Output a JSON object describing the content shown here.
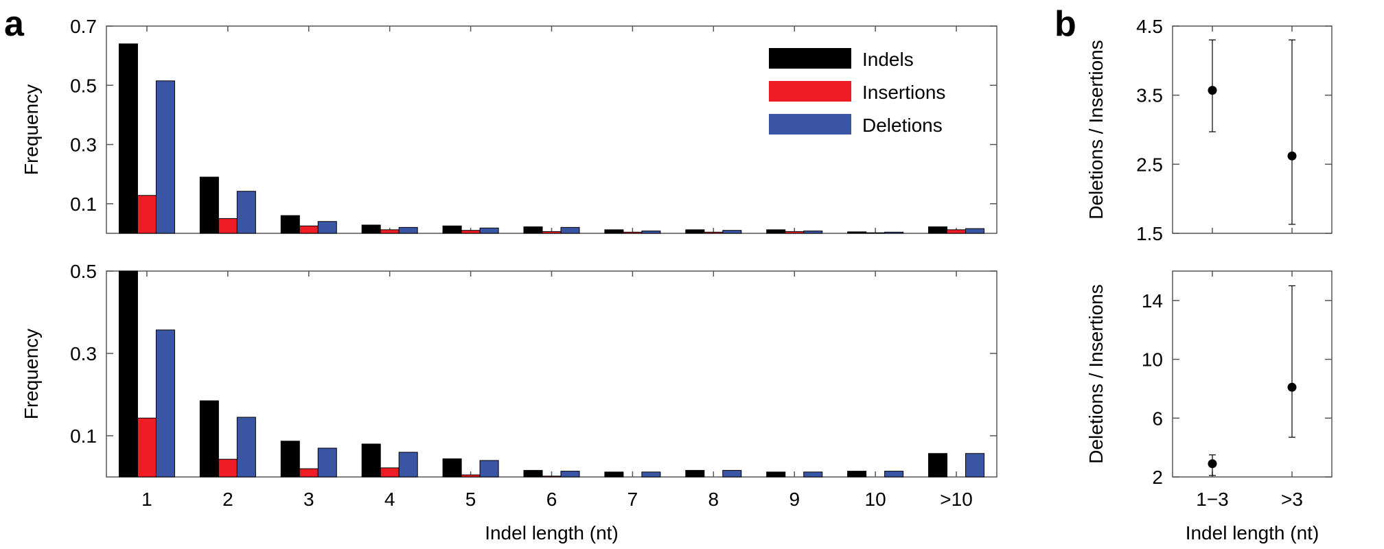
{
  "panel_labels": {
    "a": "a",
    "b": "b"
  },
  "colors": {
    "indels": "#000000",
    "insertions": "#ee1c25",
    "deletions": "#3a55a4"
  },
  "chart_data": [
    {
      "type": "bar",
      "panel": "a",
      "categories": [
        "1",
        "2",
        "3",
        "4",
        "5",
        "6",
        "7",
        "8",
        "9",
        "10",
        ">10"
      ],
      "series": [
        {
          "name": "Indels",
          "values": [
            0.64,
            0.19,
            0.06,
            0.028,
            0.025,
            0.022,
            0.012,
            0.012,
            0.012,
            0.005,
            0.022
          ]
        },
        {
          "name": "Insertions",
          "values": [
            0.128,
            0.05,
            0.025,
            0.012,
            0.01,
            0.006,
            0.004,
            0.004,
            0.006,
            0.002,
            0.012
          ]
        },
        {
          "name": "Deletions",
          "values": [
            0.515,
            0.142,
            0.04,
            0.02,
            0.018,
            0.02,
            0.008,
            0.01,
            0.008,
            0.004,
            0.016
          ]
        }
      ],
      "ylabel": "Frequency",
      "ylim": [
        0,
        0.7
      ],
      "yticks": [
        0.1,
        0.3,
        0.5,
        0.7
      ],
      "legend": [
        "Indels",
        "Insertions",
        "Deletions"
      ],
      "legend_position": "top-right"
    },
    {
      "type": "bar",
      "panel": "a",
      "categories": [
        "1",
        "2",
        "3",
        "4",
        "5",
        "6",
        "7",
        "8",
        "9",
        "10",
        ">10"
      ],
      "series": [
        {
          "name": "Indels",
          "values": [
            0.5,
            0.185,
            0.087,
            0.08,
            0.044,
            0.016,
            0.012,
            0.016,
            0.012,
            0.014,
            0.057
          ]
        },
        {
          "name": "Insertions",
          "values": [
            0.143,
            0.043,
            0.02,
            0.022,
            0.005,
            0.002,
            0.0,
            0.0,
            0.0,
            0.0,
            0.0
          ]
        },
        {
          "name": "Deletions",
          "values": [
            0.357,
            0.145,
            0.07,
            0.06,
            0.04,
            0.014,
            0.012,
            0.016,
            0.012,
            0.014,
            0.057
          ]
        }
      ],
      "xlabel": "Indel length (nt)",
      "ylabel": "Frequency",
      "ylim": [
        0,
        0.5
      ],
      "yticks": [
        0.1,
        0.3,
        0.5
      ]
    },
    {
      "type": "scatter",
      "panel": "b",
      "categories": [
        "1−3",
        ">3"
      ],
      "points": [
        {
          "x": "1−3",
          "y": 3.57,
          "low": 2.97,
          "high": 4.3
        },
        {
          "x": ">3",
          "y": 2.62,
          "low": 1.63,
          "high": 4.3
        }
      ],
      "ylabel": "Deletions / Insertions",
      "ylim": [
        1.5,
        4.5
      ],
      "yticks": [
        1.5,
        2.5,
        3.5,
        4.5
      ],
      "ytick_labels": [
        "1.5",
        "2.5",
        "3.5",
        "4.5"
      ]
    },
    {
      "type": "scatter",
      "panel": "b",
      "categories": [
        "1−3",
        ">3"
      ],
      "points": [
        {
          "x": "1−3",
          "y": 2.9,
          "low": 2.1,
          "high": 3.5
        },
        {
          "x": ">3",
          "y": 8.1,
          "low": 4.7,
          "high": 15.0
        }
      ],
      "xlabel": "Indel length (nt)",
      "ylabel": "Deletions / Insertions",
      "ylim": [
        2,
        16
      ],
      "yticks": [
        2,
        6,
        10,
        14
      ],
      "ytick_labels": [
        "2",
        "6",
        "10",
        "14"
      ]
    }
  ]
}
